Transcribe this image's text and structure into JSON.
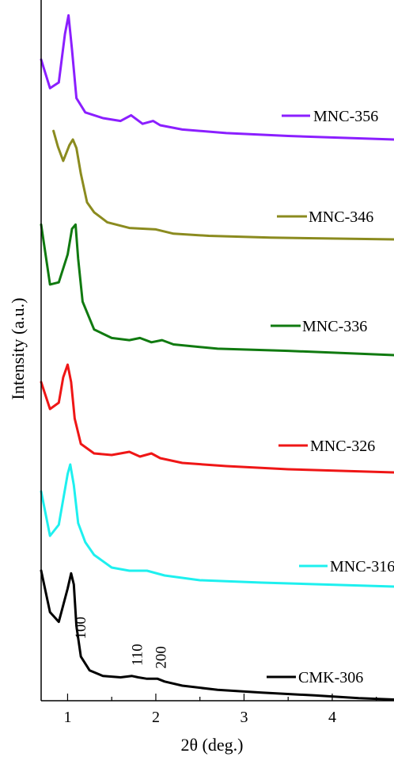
{
  "chart_data": {
    "type": "line",
    "title": "",
    "xlabel": "2θ (deg.)",
    "ylabel": "Intensity (a.u.)",
    "xlim": [
      0.7,
      4.7
    ],
    "x_ticks": [
      "1",
      "2",
      "3",
      "4"
    ],
    "y_ticks_shown": false,
    "legend": "inline labels beside each curve",
    "series": [
      {
        "name": "MNC-356",
        "color": "#8b1fff",
        "points": [
          [
            0.7,
            0.56
          ],
          [
            0.8,
            0.36
          ],
          [
            0.9,
            0.4
          ],
          [
            0.97,
            0.74
          ],
          [
            1.01,
            0.87
          ],
          [
            1.05,
            0.63
          ],
          [
            1.1,
            0.29
          ],
          [
            1.2,
            0.19
          ],
          [
            1.4,
            0.15
          ],
          [
            1.6,
            0.13
          ],
          [
            1.72,
            0.17
          ],
          [
            1.85,
            0.11
          ],
          [
            1.97,
            0.13
          ],
          [
            2.05,
            0.1
          ],
          [
            2.3,
            0.07
          ],
          [
            2.8,
            0.045
          ],
          [
            3.5,
            0.025
          ],
          [
            4.7,
            0.0
          ]
        ]
      },
      {
        "name": "MNC-346",
        "color": "#8b8b1f",
        "points": [
          [
            0.84,
            0.76
          ],
          [
            0.89,
            0.65
          ],
          [
            0.95,
            0.55
          ],
          [
            1.02,
            0.66
          ],
          [
            1.06,
            0.7
          ],
          [
            1.1,
            0.64
          ],
          [
            1.15,
            0.46
          ],
          [
            1.22,
            0.26
          ],
          [
            1.3,
            0.19
          ],
          [
            1.45,
            0.12
          ],
          [
            1.7,
            0.08
          ],
          [
            2.0,
            0.07
          ],
          [
            2.2,
            0.04
          ],
          [
            2.6,
            0.025
          ],
          [
            3.3,
            0.012
          ],
          [
            4.7,
            0.0
          ]
        ]
      },
      {
        "name": "MNC-336",
        "color": "#107a10",
        "points": [
          [
            0.7,
            0.61
          ],
          [
            0.8,
            0.33
          ],
          [
            0.9,
            0.34
          ],
          [
            1.0,
            0.47
          ],
          [
            1.05,
            0.59
          ],
          [
            1.09,
            0.61
          ],
          [
            1.12,
            0.45
          ],
          [
            1.17,
            0.25
          ],
          [
            1.3,
            0.12
          ],
          [
            1.5,
            0.08
          ],
          [
            1.7,
            0.07
          ],
          [
            1.82,
            0.08
          ],
          [
            1.95,
            0.06
          ],
          [
            2.07,
            0.07
          ],
          [
            2.2,
            0.05
          ],
          [
            2.7,
            0.03
          ],
          [
            3.5,
            0.02
          ],
          [
            4.7,
            0.0
          ]
        ]
      },
      {
        "name": "MNC-326",
        "color": "#ef1616",
        "points": [
          [
            0.7,
            0.57
          ],
          [
            0.8,
            0.4
          ],
          [
            0.9,
            0.44
          ],
          [
            0.95,
            0.6
          ],
          [
            1.0,
            0.68
          ],
          [
            1.04,
            0.57
          ],
          [
            1.08,
            0.34
          ],
          [
            1.15,
            0.18
          ],
          [
            1.3,
            0.12
          ],
          [
            1.5,
            0.11
          ],
          [
            1.7,
            0.13
          ],
          [
            1.82,
            0.1
          ],
          [
            1.95,
            0.12
          ],
          [
            2.05,
            0.09
          ],
          [
            2.3,
            0.06
          ],
          [
            2.8,
            0.04
          ],
          [
            3.5,
            0.02
          ],
          [
            4.7,
            0.0
          ]
        ]
      },
      {
        "name": "MNC-316",
        "color": "#1ef0ef",
        "points": [
          [
            0.7,
            0.6
          ],
          [
            0.8,
            0.32
          ],
          [
            0.9,
            0.39
          ],
          [
            1.0,
            0.71
          ],
          [
            1.03,
            0.77
          ],
          [
            1.07,
            0.64
          ],
          [
            1.12,
            0.4
          ],
          [
            1.2,
            0.28
          ],
          [
            1.3,
            0.2
          ],
          [
            1.5,
            0.12
          ],
          [
            1.7,
            0.1
          ],
          [
            1.9,
            0.1
          ],
          [
            2.1,
            0.07
          ],
          [
            2.5,
            0.04
          ],
          [
            3.2,
            0.025
          ],
          [
            4.7,
            0.0
          ]
        ]
      },
      {
        "name": "CMK-306",
        "color": "#000000",
        "points": [
          [
            0.7,
            0.95
          ],
          [
            0.8,
            0.65
          ],
          [
            0.9,
            0.58
          ],
          [
            1.0,
            0.82
          ],
          [
            1.04,
            0.93
          ],
          [
            1.07,
            0.85
          ],
          [
            1.1,
            0.55
          ],
          [
            1.15,
            0.33
          ],
          [
            1.25,
            0.23
          ],
          [
            1.4,
            0.19
          ],
          [
            1.6,
            0.18
          ],
          [
            1.73,
            0.19
          ],
          [
            1.8,
            0.18
          ],
          [
            1.9,
            0.17
          ],
          [
            2.02,
            0.17
          ],
          [
            2.1,
            0.15
          ],
          [
            2.3,
            0.12
          ],
          [
            2.7,
            0.09
          ],
          [
            3.2,
            0.07
          ],
          [
            3.8,
            0.05
          ],
          [
            4.3,
            0.03
          ],
          [
            4.7,
            0.02
          ]
        ]
      }
    ],
    "annotations": [
      {
        "text": "100",
        "x": 1.14,
        "series": "CMK-306",
        "rotated": true
      },
      {
        "text": "110",
        "x": 1.78,
        "series": "CMK-306",
        "rotated": true
      },
      {
        "text": "200",
        "x": 2.05,
        "series": "CMK-306",
        "rotated": true
      }
    ]
  }
}
